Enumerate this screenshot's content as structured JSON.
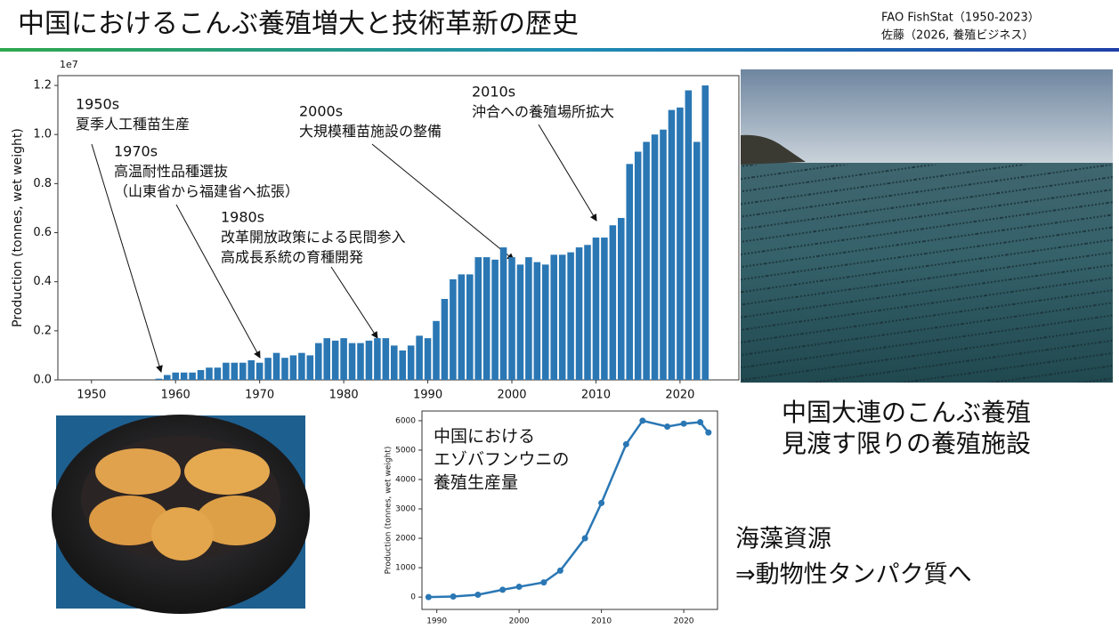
{
  "header": {
    "title": "中国におけるこんぶ養殖増大と技術革新の歴史",
    "source_lines": [
      "FAO FishStat（1950-2023）",
      "佐藤（2026, 養殖ビジネス）"
    ]
  },
  "chart_data": [
    {
      "type": "bar",
      "color": "#2a77b4",
      "ylabel": "Production (tonnes, wet weight)",
      "y_offset_label": "1e7",
      "x": [
        1950,
        1951,
        1952,
        1953,
        1954,
        1955,
        1956,
        1957,
        1958,
        1959,
        1960,
        1961,
        1962,
        1963,
        1964,
        1965,
        1966,
        1967,
        1968,
        1969,
        1970,
        1971,
        1972,
        1973,
        1974,
        1975,
        1976,
        1977,
        1978,
        1979,
        1980,
        1981,
        1982,
        1983,
        1984,
        1985,
        1986,
        1987,
        1988,
        1989,
        1990,
        1991,
        1992,
        1993,
        1994,
        1995,
        1996,
        1997,
        1998,
        1999,
        2000,
        2001,
        2002,
        2003,
        2004,
        2005,
        2006,
        2007,
        2008,
        2009,
        2010,
        2011,
        2012,
        2013,
        2014,
        2015,
        2016,
        2017,
        2018,
        2019,
        2020,
        2021,
        2022,
        2023
      ],
      "values": [
        0,
        0,
        0,
        0,
        0,
        0,
        0,
        0,
        0.005,
        0.02,
        0.03,
        0.03,
        0.03,
        0.04,
        0.05,
        0.05,
        0.07,
        0.07,
        0.07,
        0.08,
        0.07,
        0.09,
        0.11,
        0.09,
        0.1,
        0.11,
        0.1,
        0.15,
        0.17,
        0.16,
        0.17,
        0.15,
        0.15,
        0.16,
        0.17,
        0.17,
        0.14,
        0.12,
        0.14,
        0.18,
        0.17,
        0.24,
        0.33,
        0.41,
        0.43,
        0.43,
        0.5,
        0.5,
        0.49,
        0.54,
        0.5,
        0.47,
        0.5,
        0.48,
        0.47,
        0.51,
        0.51,
        0.52,
        0.54,
        0.55,
        0.58,
        0.58,
        0.63,
        0.66,
        0.88,
        0.93,
        0.97,
        1.0,
        1.02,
        1.1,
        1.11,
        1.18,
        0.97,
        1.2
      ],
      "xlim": [
        1946,
        2027
      ],
      "xticks": [
        1950,
        1960,
        1970,
        1980,
        1990,
        2000,
        2010,
        2020
      ],
      "ylim": [
        0,
        1.24
      ],
      "yticks": [
        {
          "value": 0,
          "label": "0.0"
        },
        0.2,
        0.4,
        0.6,
        0.8,
        {
          "value": 1,
          "label": "1.0"
        },
        1.2
      ],
      "annotations": [
        {
          "lines": [
            "1950s",
            "夏季人工種苗生産"
          ]
        },
        {
          "lines": [
            "1970s",
            "高温耐性品種選抜",
            "（山東省から福建省へ拡張）"
          ]
        },
        {
          "lines": [
            "1980s",
            "改革開放政策による民間参入",
            "高成長系統の育種開発"
          ]
        },
        {
          "lines": [
            "2000s",
            "大規模種苗施設の整備"
          ]
        },
        {
          "lines": [
            "2010s",
            "沖合への養殖場所拡大"
          ]
        }
      ]
    },
    {
      "type": "line",
      "color": "#2a77b4",
      "title_lines": [
        "中国における",
        "エゾバフンウニの",
        "養殖生産量"
      ],
      "ylabel": "Production (tonnes, wet weight)",
      "x": [
        1989,
        1992,
        1995,
        1998,
        2000,
        2003,
        2005,
        2008,
        2010,
        2013,
        2015,
        2018,
        2020,
        2022,
        2023
      ],
      "values": [
        0,
        20,
        80,
        250,
        350,
        500,
        900,
        2000,
        3200,
        5200,
        6000,
        5800,
        5900,
        5950,
        5600
      ],
      "xlim": [
        1988.2,
        2024.1
      ],
      "xticks": [
        1990,
        2000,
        2010,
        2020
      ],
      "ylim": [
        -420,
        6330
      ],
      "yticks": [
        0,
        1000,
        2000,
        3000,
        4000,
        5000,
        6000
      ]
    }
  ],
  "captions": {
    "photo": [
      "中国大連のこんぶ養殖",
      "見渡す限りの養殖施設"
    ],
    "message": [
      "海藻資源",
      "⇒動物性タンパク質へ"
    ]
  }
}
